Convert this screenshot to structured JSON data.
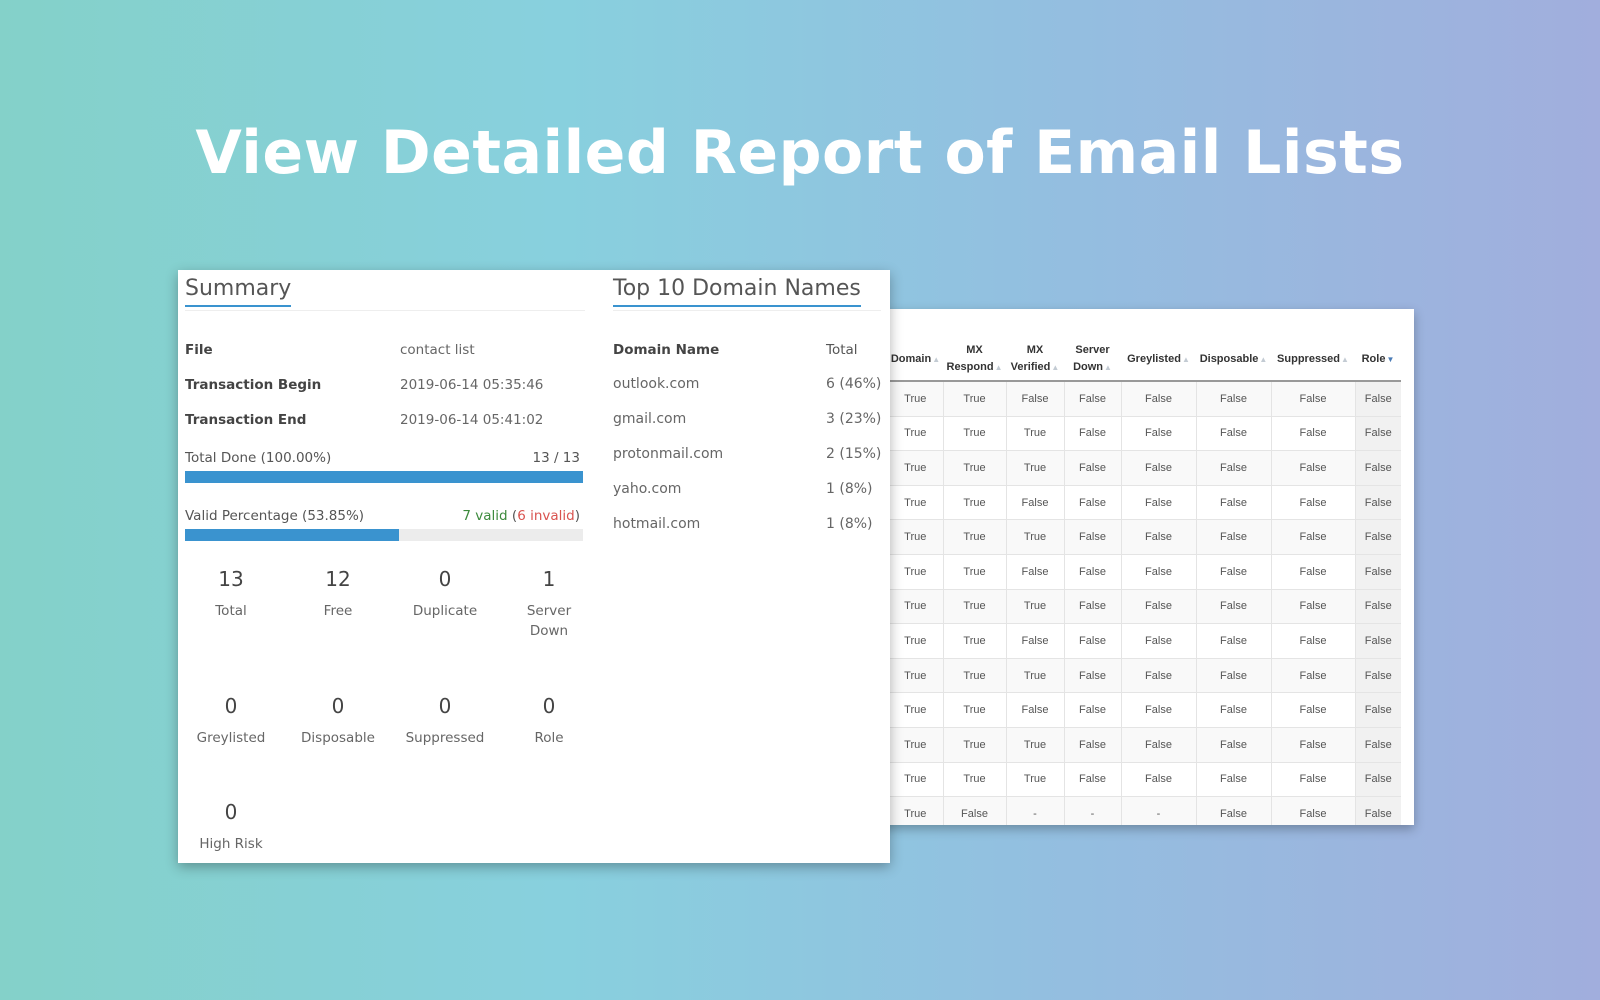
{
  "hero": {
    "title": "View Detailed Report of Email Lists"
  },
  "summary": {
    "title": "Summary",
    "file_label": "File",
    "file_value": "contact list",
    "begin_label": "Transaction Begin",
    "begin_value": "2019-06-14 05:35:46",
    "end_label": "Transaction End",
    "end_value": "2019-06-14 05:41:02",
    "total_done": {
      "label": "Total Done (100.00%)",
      "count": "13 / 13",
      "progress": 1.0
    },
    "valid": {
      "label": "Valid Percentage (53.85%)",
      "valid_text": "7 valid",
      "open_paren": "(",
      "invalid_text": "6 invalid",
      "close_paren": ")",
      "progress": 0.5385
    },
    "stats": [
      {
        "value": "13",
        "label": "Total"
      },
      {
        "value": "12",
        "label": "Free"
      },
      {
        "value": "0",
        "label": "Duplicate"
      },
      {
        "value": "1",
        "label": "Server Down"
      },
      {
        "value": "0",
        "label": "Greylisted"
      },
      {
        "value": "0",
        "label": "Disposable"
      },
      {
        "value": "0",
        "label": "Suppressed"
      },
      {
        "value": "0",
        "label": "Role"
      },
      {
        "value": "0",
        "label": "High Risk"
      }
    ]
  },
  "domains": {
    "title": "Top 10 Domain Names",
    "col_name": "Domain Name",
    "col_total": "Total",
    "rows": [
      {
        "name": "outlook.com",
        "total": "6 (46%)"
      },
      {
        "name": "gmail.com",
        "total": "3 (23%)"
      },
      {
        "name": "protonmail.com",
        "total": "2 (15%)"
      },
      {
        "name": "yaho.com",
        "total": "1 (8%)"
      },
      {
        "name": "hotmail.com",
        "total": "1 (8%)"
      }
    ]
  },
  "results_table": {
    "columns": [
      "Domain",
      "MX Respond",
      "MX Verified",
      "Server Down",
      "Greylisted",
      "Disposable",
      "Suppressed",
      "Role"
    ],
    "rows": [
      [
        "True",
        "True",
        "False",
        "False",
        "False",
        "False",
        "False",
        "False"
      ],
      [
        "True",
        "True",
        "True",
        "False",
        "False",
        "False",
        "False",
        "False"
      ],
      [
        "True",
        "True",
        "True",
        "False",
        "False",
        "False",
        "False",
        "False"
      ],
      [
        "True",
        "True",
        "False",
        "False",
        "False",
        "False",
        "False",
        "False"
      ],
      [
        "True",
        "True",
        "True",
        "False",
        "False",
        "False",
        "False",
        "False"
      ],
      [
        "True",
        "True",
        "False",
        "False",
        "False",
        "False",
        "False",
        "False"
      ],
      [
        "True",
        "True",
        "True",
        "False",
        "False",
        "False",
        "False",
        "False"
      ],
      [
        "True",
        "True",
        "False",
        "False",
        "False",
        "False",
        "False",
        "False"
      ],
      [
        "True",
        "True",
        "True",
        "False",
        "False",
        "False",
        "False",
        "False"
      ],
      [
        "True",
        "True",
        "False",
        "False",
        "False",
        "False",
        "False",
        "False"
      ],
      [
        "True",
        "True",
        "True",
        "False",
        "False",
        "False",
        "False",
        "False"
      ],
      [
        "True",
        "True",
        "True",
        "False",
        "False",
        "False",
        "False",
        "False"
      ],
      [
        "True",
        "False",
        "-",
        "-",
        "-",
        "False",
        "False",
        "False"
      ]
    ]
  }
}
